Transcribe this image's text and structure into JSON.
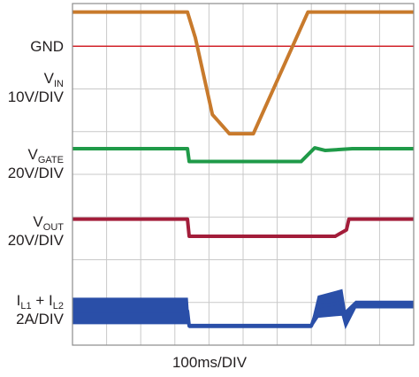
{
  "chart_data": {
    "type": "line",
    "x_per_division": "100ms/DIV",
    "divisions_x": 10,
    "divisions_y": 8,
    "grid": true,
    "reference": {
      "name": "GND",
      "color": "#d2232a"
    },
    "series": [
      {
        "id": "vin",
        "label": {
          "main": "V",
          "sub": "IN",
          "scale": "10V/DIV"
        },
        "color": "#c87a2c",
        "x": [
          0,
          3.37,
          3.6,
          4.1,
          4.6,
          5.3,
          6.9,
          10
        ],
        "y": [
          7.8,
          7.8,
          7.2,
          5.4,
          4.95,
          4.95,
          7.8,
          7.8
        ]
      },
      {
        "id": "vgate",
        "label": {
          "main": "V",
          "sub": "GATE",
          "scale": "20V/DIV"
        },
        "color": "#1f9a48",
        "x": [
          0,
          3.37,
          3.42,
          6.7,
          7.1,
          7.4,
          8.2,
          10
        ],
        "y": [
          4.6,
          4.6,
          4.3,
          4.3,
          4.62,
          4.56,
          4.6,
          4.6
        ]
      },
      {
        "id": "vout",
        "label": {
          "main": "V",
          "sub": "OUT",
          "scale": "20V/DIV"
        },
        "color": "#a31d3a",
        "x": [
          0,
          3.37,
          3.42,
          7.7,
          8.03,
          8.1,
          10
        ],
        "y": [
          2.95,
          2.95,
          2.55,
          2.55,
          2.7,
          2.95,
          2.95
        ]
      },
      {
        "id": "il",
        "label": {
          "main1": "I",
          "sub1": "L1",
          "join": " + I",
          "sub2": "L2",
          "scale": "2A/DIV"
        },
        "color": "#2a4fa8",
        "x": [
          0,
          3.37,
          3.42,
          7.0,
          7.2,
          7.9,
          8.0,
          8.3,
          10
        ],
        "y": [
          0.8,
          0.8,
          0.45,
          0.45,
          0.9,
          1.0,
          0.6,
          0.95,
          0.95
        ],
        "envelope": [
          0.3,
          0.3,
          0.04,
          0.04,
          0.25,
          0.3,
          0.2,
          0.08,
          0.08
        ]
      }
    ]
  }
}
